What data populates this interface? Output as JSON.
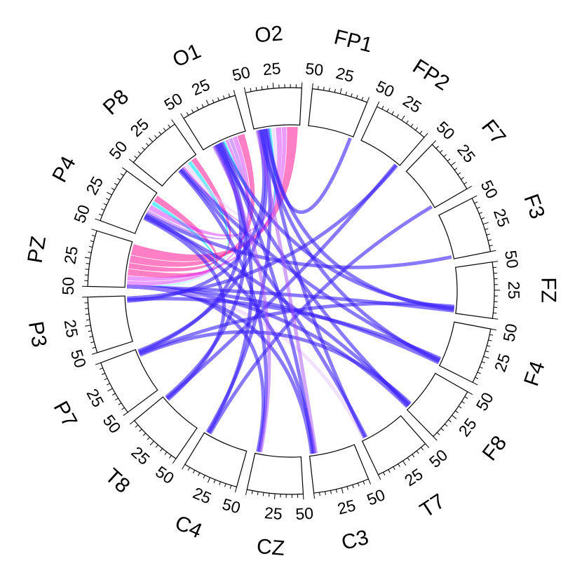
{
  "chart_data": {
    "type": "chord",
    "title": "",
    "sectors": [
      "FP1",
      "FP2",
      "F7",
      "F3",
      "FZ",
      "F4",
      "F8",
      "T7",
      "C3",
      "CZ",
      "C4",
      "T8",
      "P7",
      "P3",
      "PZ",
      "P4",
      "P8",
      "O1",
      "O2"
    ],
    "sector_max": 50,
    "tick_labels": [
      "25",
      "50"
    ],
    "colors": {
      "strong": "#ff1493",
      "magenta": "#d21eff",
      "violet": "#a64dff",
      "blue": "#3a1fff",
      "cyan": "#00e5ff",
      "pale": "#e6c3ff"
    },
    "links": [
      {
        "from": "PZ",
        "to": "O2",
        "value": 12,
        "color": "strong"
      },
      {
        "from": "PZ",
        "to": "O1",
        "value": 8,
        "color": "strong"
      },
      {
        "from": "PZ",
        "to": "P8",
        "value": 6,
        "color": "strong"
      },
      {
        "from": "PZ",
        "to": "P4",
        "value": 7,
        "color": "strong"
      },
      {
        "from": "PZ",
        "to": "O2",
        "value": 5,
        "color": "magenta"
      },
      {
        "from": "PZ",
        "to": "O1",
        "value": 5,
        "color": "magenta"
      },
      {
        "from": "PZ",
        "to": "P8",
        "value": 4,
        "color": "cyan"
      },
      {
        "from": "PZ",
        "to": "P4",
        "value": 4,
        "color": "cyan"
      },
      {
        "from": "P4",
        "to": "O2",
        "value": 6,
        "color": "magenta"
      },
      {
        "from": "P4",
        "to": "O1",
        "value": 4,
        "color": "violet"
      },
      {
        "from": "P8",
        "to": "O2",
        "value": 4,
        "color": "pale"
      },
      {
        "from": "P8",
        "to": "O1",
        "value": 3,
        "color": "magenta"
      },
      {
        "from": "O1",
        "to": "O2",
        "value": 3,
        "color": "cyan"
      },
      {
        "from": "PZ",
        "to": "FZ",
        "value": 1,
        "color": "blue"
      },
      {
        "from": "PZ",
        "to": "F4",
        "value": 1,
        "color": "blue"
      },
      {
        "from": "PZ",
        "to": "F8",
        "value": 1,
        "color": "blue"
      },
      {
        "from": "PZ",
        "to": "C3",
        "value": 1,
        "color": "blue"
      },
      {
        "from": "PZ",
        "to": "CZ",
        "value": 1,
        "color": "blue"
      },
      {
        "from": "PZ",
        "to": "T7",
        "value": 1,
        "color": "pale"
      },
      {
        "from": "O2",
        "to": "FP1",
        "value": 1,
        "color": "blue"
      },
      {
        "from": "O2",
        "to": "FZ",
        "value": 1,
        "color": "blue"
      },
      {
        "from": "O2",
        "to": "T7",
        "value": 1,
        "color": "blue"
      },
      {
        "from": "O2",
        "to": "C4",
        "value": 1,
        "color": "blue"
      },
      {
        "from": "O2",
        "to": "P7",
        "value": 1,
        "color": "blue"
      },
      {
        "from": "O2",
        "to": "F4",
        "value": 1,
        "color": "blue"
      },
      {
        "from": "O1",
        "to": "FZ",
        "value": 1,
        "color": "blue"
      },
      {
        "from": "O1",
        "to": "C3",
        "value": 1,
        "color": "blue"
      },
      {
        "from": "O1",
        "to": "T8",
        "value": 1,
        "color": "blue"
      },
      {
        "from": "O1",
        "to": "F8",
        "value": 1,
        "color": "blue"
      },
      {
        "from": "P8",
        "to": "F4",
        "value": 1,
        "color": "blue"
      },
      {
        "from": "P8",
        "to": "T7",
        "value": 1,
        "color": "blue"
      },
      {
        "from": "P8",
        "to": "CZ",
        "value": 1,
        "color": "blue"
      },
      {
        "from": "P4",
        "to": "F3",
        "value": 1,
        "color": "blue"
      },
      {
        "from": "P4",
        "to": "C3",
        "value": 1,
        "color": "blue"
      },
      {
        "from": "P4",
        "to": "F8",
        "value": 1,
        "color": "blue"
      },
      {
        "from": "P3",
        "to": "FP2",
        "value": 1,
        "color": "blue"
      },
      {
        "from": "P3",
        "to": "F4",
        "value": 1,
        "color": "blue"
      },
      {
        "from": "P3",
        "to": "O2",
        "value": 1,
        "color": "blue"
      },
      {
        "from": "P7",
        "to": "O1",
        "value": 1,
        "color": "blue"
      },
      {
        "from": "P7",
        "to": "FZ",
        "value": 1,
        "color": "blue"
      },
      {
        "from": "P7",
        "to": "F8",
        "value": 1,
        "color": "blue"
      },
      {
        "from": "T8",
        "to": "FP2",
        "value": 1,
        "color": "blue"
      },
      {
        "from": "T8",
        "to": "P4",
        "value": 1,
        "color": "blue"
      },
      {
        "from": "C4",
        "to": "O1",
        "value": 1,
        "color": "blue"
      },
      {
        "from": "C4",
        "to": "F7",
        "value": 1,
        "color": "blue"
      },
      {
        "from": "CZ",
        "to": "O1",
        "value": 1,
        "color": "violet"
      },
      {
        "from": "C3",
        "to": "O2",
        "value": 1,
        "color": "violet"
      }
    ]
  }
}
